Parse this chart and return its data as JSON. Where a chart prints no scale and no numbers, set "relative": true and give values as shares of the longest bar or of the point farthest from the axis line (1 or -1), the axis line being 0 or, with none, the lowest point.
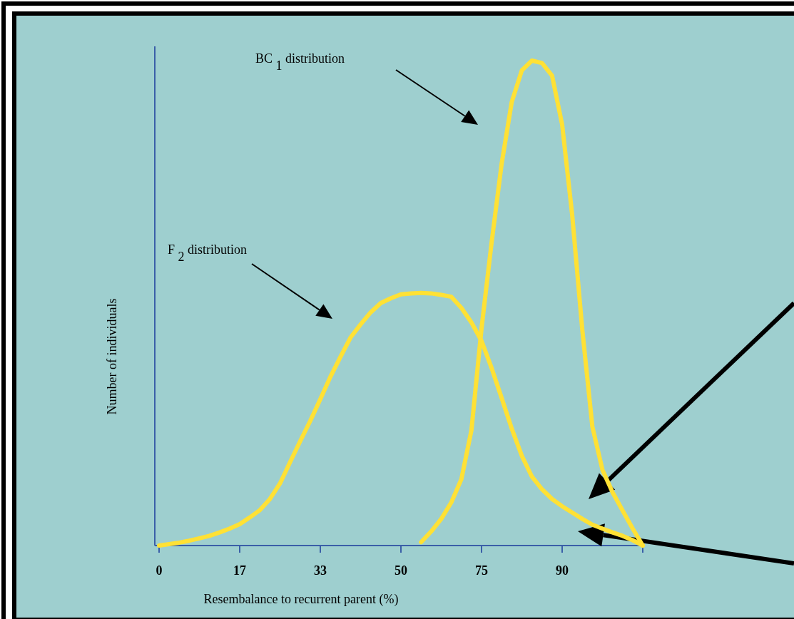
{
  "chart_data": {
    "type": "line",
    "relative": true,
    "xlabel": "Resembalance to recurrent parent (%)",
    "ylabel": "Number of individuals",
    "categories": [
      "0",
      null,
      null,
      null,
      null,
      null,
      null,
      null,
      "17",
      null,
      null,
      null,
      null,
      null,
      null,
      null,
      "33",
      null,
      null,
      null,
      null,
      null,
      null,
      null,
      "50",
      null,
      null,
      null,
      null,
      null,
      null,
      null,
      "75",
      null,
      null,
      null,
      null,
      null,
      null,
      null,
      "90",
      null,
      null,
      null,
      null,
      null,
      null,
      null,
      null
    ],
    "annotations": [
      "BC$_{1}$ distribution",
      "F$_{2}$ distribution"
    ],
    "series": [
      {
        "color": "#ffe135",
        "values": [
          null,
          null,
          null,
          null,
          null,
          null,
          null,
          null,
          null,
          null,
          null,
          null,
          null,
          null,
          null,
          null,
          null,
          null,
          null,
          null,
          null,
          null,
          null,
          null,
          null,
          null,
          0.007,
          0.029,
          0.055,
          0.089,
          0.137,
          0.238,
          0.448,
          0.625,
          0.788,
          0.915,
          0.98,
          1,
          0.995,
          0.969,
          0.868,
          0.681,
          0.445,
          0.245,
          0.156,
          0.11,
          0.072,
          0.035,
          0
        ]
      },
      {
        "color": "#ffe135",
        "values": [
          0,
          0.003,
          0.006,
          0.01,
          0.015,
          0.02,
          0.027,
          0.035,
          0.044,
          0.058,
          0.073,
          0.096,
          0.128,
          0.172,
          0.215,
          0.257,
          0.302,
          0.348,
          0.389,
          0.429,
          0.456,
          0.481,
          0.5,
          0.51,
          0.518,
          0.52,
          0.521,
          0.52,
          0.517,
          0.513,
          0.49,
          0.46,
          0.422,
          0.366,
          0.304,
          0.241,
          0.185,
          0.142,
          0.116,
          0.096,
          0.081,
          0.068,
          0.055,
          0.043,
          0.035,
          0.027,
          0.02,
          0.011,
          0
        ]
      }
    ]
  }
}
